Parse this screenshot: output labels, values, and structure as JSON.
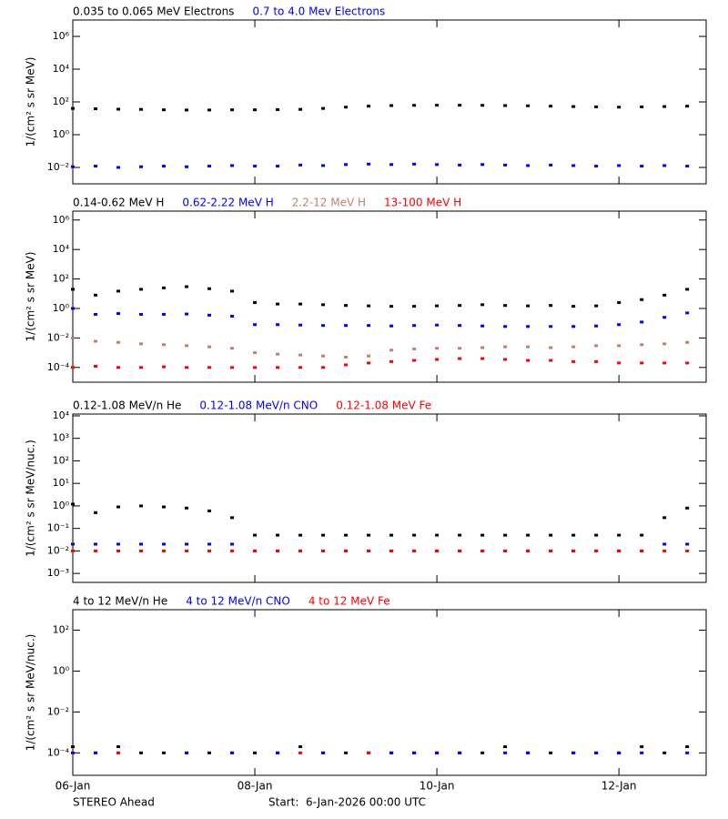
{
  "chart_data": [
    {
      "type": "scatter",
      "log_y": true,
      "ylabel": "1/(cm² s sr MeV)",
      "ylim": [
        0.001,
        10000000
      ],
      "yticks": [
        {
          "value": 0.01,
          "label": "10⁻²"
        },
        {
          "value": 1,
          "label": "10⁰"
        },
        {
          "value": 100,
          "label": "10²"
        },
        {
          "value": 10000,
          "label": "10⁴"
        },
        {
          "value": 1000000,
          "label": "10⁶"
        }
      ],
      "x": [
        0,
        6,
        12,
        18,
        24,
        30,
        36,
        42,
        48,
        54,
        60,
        66,
        72,
        78,
        84,
        90,
        96,
        102,
        108,
        114,
        120,
        126,
        132,
        138,
        144,
        150,
        156,
        162
      ],
      "series": [
        {
          "name": "0.035 to 0.065 MeV Electrons",
          "color": "#000000",
          "values": [
            40,
            38,
            36,
            35,
            33,
            32,
            32,
            33,
            33,
            34,
            35,
            40,
            48,
            55,
            60,
            62,
            63,
            63,
            62,
            60,
            58,
            55,
            52,
            50,
            48,
            50,
            52,
            55
          ]
        },
        {
          "name": "0.7 to 4.0 Mev Electrons",
          "color": "#0000ff",
          "values": [
            0.011,
            0.012,
            0.01,
            0.011,
            0.012,
            0.011,
            0.012,
            0.013,
            0.012,
            0.012,
            0.014,
            0.013,
            0.015,
            0.016,
            0.015,
            0.016,
            0.015,
            0.014,
            0.015,
            0.014,
            0.013,
            0.014,
            0.013,
            0.012,
            0.013,
            0.012,
            0.013,
            0.012
          ]
        }
      ]
    },
    {
      "type": "scatter",
      "log_y": true,
      "ylabel": "1/(cm² s sr MeV)",
      "ylim": [
        1e-05,
        4000000
      ],
      "yticks": [
        {
          "value": 0.0001,
          "label": "10⁻⁴"
        },
        {
          "value": 0.01,
          "label": "10⁻²"
        },
        {
          "value": 1,
          "label": "10⁰"
        },
        {
          "value": 100,
          "label": "10²"
        },
        {
          "value": 10000,
          "label": "10⁴"
        },
        {
          "value": 1000000,
          "label": "10⁶"
        }
      ],
      "x": [
        0,
        6,
        12,
        18,
        24,
        30,
        36,
        42,
        48,
        54,
        60,
        66,
        72,
        78,
        84,
        90,
        96,
        102,
        108,
        114,
        120,
        126,
        132,
        138,
        144,
        150,
        156,
        162
      ],
      "series": [
        {
          "name": "0.14-0.62 MeV H",
          "color": "#000000",
          "values": [
            20,
            8,
            15,
            20,
            25,
            30,
            22,
            15,
            2.5,
            2,
            2,
            1.8,
            1.6,
            1.5,
            1.4,
            1.4,
            1.5,
            1.6,
            1.8,
            1.6,
            1.5,
            1.6,
            1.4,
            1.5,
            2.5,
            4,
            8,
            20
          ]
        },
        {
          "name": "0.62-2.22 MeV H",
          "color": "#0000ff",
          "values": [
            1,
            0.4,
            0.45,
            0.4,
            0.4,
            0.42,
            0.35,
            0.3,
            0.08,
            0.08,
            0.075,
            0.07,
            0.07,
            0.07,
            0.065,
            0.07,
            0.075,
            0.07,
            0.065,
            0.06,
            0.06,
            0.06,
            0.06,
            0.065,
            0.08,
            0.12,
            0.25,
            0.5
          ]
        },
        {
          "name": "2.2-12 MeV H",
          "color": "#c08070",
          "values": [
            0.01,
            0.006,
            0.005,
            0.004,
            0.0035,
            0.003,
            0.0025,
            0.002,
            0.001,
            0.0008,
            0.0007,
            0.0006,
            0.0005,
            0.0006,
            0.0015,
            0.0018,
            0.002,
            0.002,
            0.0022,
            0.0025,
            0.0025,
            0.0022,
            0.0025,
            0.003,
            0.003,
            0.0035,
            0.004,
            0.005
          ]
        },
        {
          "name": "13-100 MeV H",
          "color": "#ff0000",
          "values": [
            0.0001,
            0.00012,
            0.0001,
            0.0001,
            0.00011,
            0.0001,
            0.0001,
            0.0001,
            0.0001,
            0.0001,
            0.0001,
            0.0001,
            0.00015,
            0.0002,
            0.00025,
            0.0003,
            0.00035,
            0.0004,
            0.0004,
            0.00035,
            0.0003,
            0.0003,
            0.00025,
            0.00025,
            0.0002,
            0.0002,
            0.0002,
            0.0002
          ]
        }
      ]
    },
    {
      "type": "scatter",
      "log_y": true,
      "ylabel": "1/(cm² s sr MeV/nuc.)",
      "ylim": [
        0.0004,
        12000
      ],
      "yticks": [
        {
          "value": 0.001,
          "label": "10⁻³"
        },
        {
          "value": 0.01,
          "label": "10⁻²"
        },
        {
          "value": 0.1,
          "label": "10⁻¹"
        },
        {
          "value": 1,
          "label": "10⁰"
        },
        {
          "value": 10,
          "label": "10¹"
        },
        {
          "value": 100,
          "label": "10²"
        },
        {
          "value": 1000,
          "label": "10³"
        },
        {
          "value": 10000,
          "label": "10⁴"
        }
      ],
      "x": [
        0,
        6,
        12,
        18,
        24,
        30,
        36,
        42,
        48,
        54,
        60,
        66,
        72,
        78,
        84,
        90,
        96,
        102,
        108,
        114,
        120,
        126,
        132,
        138,
        144,
        150,
        156,
        162
      ],
      "series": [
        {
          "name": "0.12-1.08 MeV/n He",
          "color": "#000000",
          "values": [
            1.2,
            0.5,
            0.9,
            1,
            0.9,
            0.8,
            0.6,
            0.3,
            0.05,
            0.05,
            0.05,
            0.05,
            0.05,
            0.05,
            0.05,
            0.05,
            0.05,
            0.05,
            0.05,
            0.05,
            0.05,
            0.05,
            0.05,
            0.05,
            0.05,
            0.05,
            0.3,
            0.8
          ]
        },
        {
          "name": "0.12-1.08 MeV/n CNO",
          "color": "#0000ff",
          "values": [
            0.02,
            0.02,
            0.02,
            0.02,
            0.02,
            0.02,
            0.02,
            0.02,
            0.01,
            0.01,
            0.01,
            0.01,
            0.01,
            0.01,
            0.01,
            0.01,
            0.01,
            0.01,
            0.01,
            0.01,
            0.01,
            0.01,
            0.01,
            0.01,
            0.01,
            0.01,
            0.02,
            0.02
          ]
        },
        {
          "name": "0.12-1.08 MeV Fe",
          "color": "#ff0000",
          "values": [
            0.01,
            0.01,
            0.01,
            0.01,
            0.01,
            0.01,
            0.01,
            0.01,
            0.01,
            0.01,
            0.01,
            0.01,
            0.01,
            0.01,
            0.01,
            0.01,
            0.01,
            0.01,
            0.01,
            0.01,
            0.01,
            0.01,
            0.01,
            0.01,
            0.01,
            0.01,
            0.01,
            0.01
          ]
        }
      ]
    },
    {
      "type": "scatter",
      "log_y": true,
      "ylabel": "1/(cm² s sr MeV/nuc.)",
      "ylim": [
        8e-06,
        1000
      ],
      "yticks": [
        {
          "value": 0.0001,
          "label": "10⁻⁴"
        },
        {
          "value": 0.01,
          "label": "10⁻²"
        },
        {
          "value": 1,
          "label": "10⁰"
        },
        {
          "value": 100,
          "label": "10²"
        }
      ],
      "xlim": [
        0,
        167
      ],
      "xticks": [
        {
          "value": 0,
          "label": "06-Jan"
        },
        {
          "value": 48,
          "label": "08-Jan"
        },
        {
          "value": 96,
          "label": "10-Jan"
        },
        {
          "value": 144,
          "label": "12-Jan"
        }
      ],
      "x": [
        0,
        6,
        12,
        18,
        24,
        30,
        36,
        42,
        48,
        54,
        60,
        66,
        72,
        78,
        84,
        90,
        96,
        102,
        108,
        114,
        120,
        126,
        132,
        138,
        144,
        150,
        156,
        162
      ],
      "series": [
        {
          "name": "4 to 12 MeV/n He",
          "color": "#000000",
          "values": [
            0.0002,
            0.0001,
            0.0002,
            0.0001,
            0.0001,
            0.0001,
            0.0001,
            0.0001,
            0.0001,
            0.0001,
            0.0002,
            0.0001,
            0.0001,
            0.0001,
            0.0001,
            0.0001,
            0.0001,
            0.0001,
            0.0001,
            0.0002,
            0.0001,
            0.0001,
            0.0001,
            0.0001,
            0.0001,
            0.0002,
            0.0001,
            0.0002
          ]
        },
        {
          "name": "4 to 12 MeV/n CNO",
          "color": "#0000ff",
          "values": [
            0.0001,
            0.0001,
            0.0001,
            null,
            null,
            0.0001,
            null,
            0.0001,
            null,
            0.0001,
            null,
            0.0001,
            null,
            null,
            0.0001,
            0.0001,
            0.0001,
            0.0001,
            null,
            0.0001,
            0.0001,
            null,
            0.0001,
            0.0001,
            0.0001,
            0.0001,
            null,
            0.0001
          ]
        },
        {
          "name": "4 to 12 MeV Fe",
          "color": "#ff0000",
          "values": [
            null,
            null,
            0.0001,
            null,
            null,
            null,
            null,
            null,
            null,
            null,
            0.0001,
            null,
            null,
            0.0001,
            null,
            null,
            null,
            null,
            null,
            null,
            null,
            null,
            null,
            null,
            null,
            null,
            null,
            null
          ]
        }
      ]
    }
  ],
  "footer": {
    "left": "STEREO Ahead",
    "right": "Start:  6-Jan-2026 00:00 UTC"
  }
}
